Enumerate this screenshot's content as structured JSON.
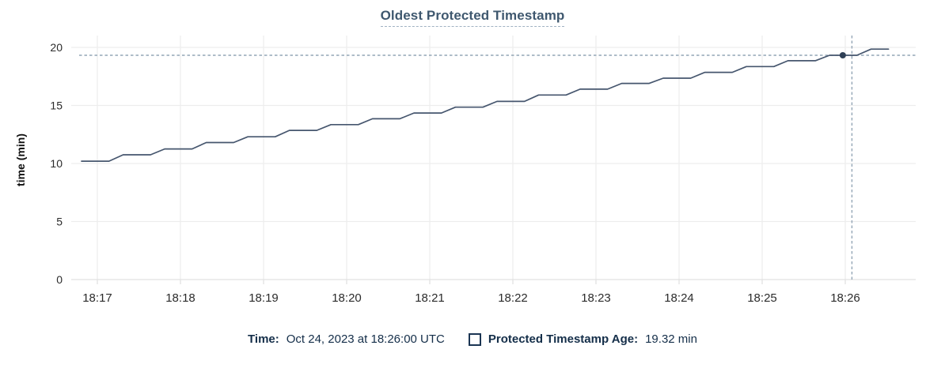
{
  "title": "Oldest Protected Timestamp",
  "legend": {
    "time_label": "Time:",
    "time_value": "Oct 24, 2023 at 18:26:00 UTC",
    "age_label": "Protected Timestamp Age:",
    "age_value": "19.32 min"
  },
  "chart_data": {
    "type": "line",
    "title": "Oldest Protected Timestamp",
    "xlabel": "",
    "ylabel": "time (min)",
    "x_axis": {
      "tick_labels": [
        "18:17",
        "18:18",
        "18:19",
        "18:20",
        "18:21",
        "18:22",
        "18:23",
        "18:24",
        "18:25",
        "18:26"
      ],
      "tick_minutes": [
        0,
        1,
        2,
        3,
        4,
        5,
        6,
        7,
        8,
        9
      ]
    },
    "y_axis": {
      "ticks": [
        0,
        5,
        10,
        15,
        20
      ],
      "range": [
        0,
        20
      ],
      "label": "time (min)"
    },
    "grid": true,
    "legend_position": "bottom-center",
    "series": [
      {
        "name": "Protected Timestamp Age",
        "unit": "min",
        "points": [
          [
            -0.19,
            10.2
          ],
          [
            0.14,
            10.2
          ],
          [
            0.31,
            10.75
          ],
          [
            0.64,
            10.75
          ],
          [
            0.81,
            11.25
          ],
          [
            1.14,
            11.25
          ],
          [
            1.31,
            11.8
          ],
          [
            1.64,
            11.8
          ],
          [
            1.81,
            12.3
          ],
          [
            2.14,
            12.3
          ],
          [
            2.31,
            12.85
          ],
          [
            2.64,
            12.85
          ],
          [
            2.81,
            13.35
          ],
          [
            3.14,
            13.35
          ],
          [
            3.31,
            13.85
          ],
          [
            3.64,
            13.85
          ],
          [
            3.81,
            14.35
          ],
          [
            4.14,
            14.35
          ],
          [
            4.31,
            14.85
          ],
          [
            4.64,
            14.85
          ],
          [
            4.81,
            15.35
          ],
          [
            5.14,
            15.35
          ],
          [
            5.31,
            15.9
          ],
          [
            5.64,
            15.9
          ],
          [
            5.81,
            16.4
          ],
          [
            6.14,
            16.4
          ],
          [
            6.31,
            16.9
          ],
          [
            6.64,
            16.9
          ],
          [
            6.81,
            17.35
          ],
          [
            7.14,
            17.35
          ],
          [
            7.31,
            17.85
          ],
          [
            7.64,
            17.85
          ],
          [
            7.81,
            18.35
          ],
          [
            8.14,
            18.35
          ],
          [
            8.31,
            18.85
          ],
          [
            8.64,
            18.85
          ],
          [
            8.81,
            19.32
          ],
          [
            9.14,
            19.32
          ],
          [
            9.31,
            19.85
          ],
          [
            9.52,
            19.85
          ]
        ]
      }
    ],
    "hover": {
      "marker_t": 8.97,
      "marker_value": 19.32,
      "crosshair_t": 9.08,
      "threshold_value": 19.32,
      "time_label": "18:26",
      "readout_time": "Oct 24, 2023 at 18:26:00 UTC",
      "readout_value": "19.32 min"
    },
    "colors": {
      "line": "#46566e",
      "marker": "#2e3f55",
      "dashed": "#93a5b5",
      "grid": "#ededed",
      "axis_line": "#e2e2e2",
      "axis_text": "#2b2b2b",
      "title": "#3f586f",
      "legend_text": "#142e49"
    }
  }
}
